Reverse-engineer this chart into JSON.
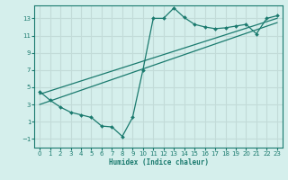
{
  "xlabel": "Humidex (Indice chaleur)",
  "background_color": "#d5efec",
  "grid_color": "#c2dbd8",
  "line_color": "#1a7a6e",
  "xlim": [
    -0.5,
    23.5
  ],
  "ylim": [
    -2.0,
    14.5
  ],
  "xticks": [
    0,
    1,
    2,
    3,
    4,
    5,
    6,
    7,
    8,
    9,
    10,
    11,
    12,
    13,
    14,
    15,
    16,
    17,
    18,
    19,
    20,
    21,
    22,
    23
  ],
  "yticks": [
    -1,
    1,
    3,
    5,
    7,
    9,
    11,
    13
  ],
  "line1_x": [
    0,
    1,
    2,
    3,
    4,
    5,
    6,
    7,
    8,
    9,
    10,
    11,
    12,
    13,
    14,
    15,
    16,
    17,
    18,
    19,
    20,
    21,
    22,
    23
  ],
  "line1_y": [
    4.5,
    3.5,
    2.7,
    2.1,
    1.8,
    1.5,
    0.5,
    0.4,
    -0.7,
    1.5,
    7.0,
    13.0,
    13.0,
    14.2,
    13.1,
    12.3,
    12.0,
    11.8,
    11.9,
    12.1,
    12.3,
    11.2,
    13.0,
    13.3
  ],
  "line2_x": [
    0,
    23
  ],
  "line2_y": [
    4.2,
    13.0
  ],
  "line3_x": [
    0,
    23
  ],
  "line3_y": [
    3.0,
    12.5
  ]
}
